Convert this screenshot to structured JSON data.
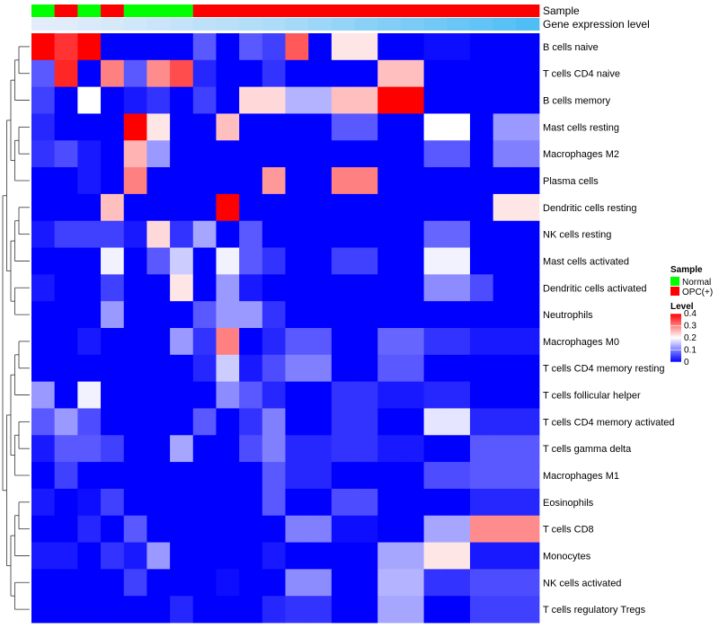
{
  "chart_data": {
    "type": "heatmap",
    "annotation_tracks": [
      {
        "name": "Sample",
        "values": [
          "Normal",
          "OPC(+)",
          "Normal",
          "OPC(+)",
          "Normal",
          "Normal",
          "Normal",
          "OPC(+)",
          "OPC(+)",
          "OPC(+)",
          "OPC(+)",
          "OPC(+)",
          "OPC(+)",
          "OPC(+)",
          "OPC(+)",
          "OPC(+)",
          "OPC(+)",
          "OPC(+)",
          "OPC(+)",
          "OPC(+)",
          "OPC(+)",
          "OPC(+)"
        ]
      },
      {
        "name": "Gene expression level",
        "values": [
          0.01,
          0.02,
          0.04,
          0.06,
          0.08,
          0.1,
          0.12,
          0.14,
          0.16,
          0.18,
          0.2,
          0.23,
          0.26,
          0.29,
          0.32,
          0.35,
          0.38,
          0.41,
          0.44,
          0.47,
          0.5,
          0.53
        ]
      }
    ],
    "rows": [
      {
        "label": "B cells naive",
        "values": [
          0.4,
          0.36,
          0.4,
          0,
          0,
          0,
          0,
          0.07,
          0,
          0.07,
          0.05,
          0.33,
          0,
          0.22,
          0.22,
          0,
          0,
          0.01,
          0.01,
          0,
          0,
          0
        ]
      },
      {
        "label": "T cells CD4 naive",
        "values": [
          0.07,
          0.37,
          0,
          0.3,
          0.07,
          0.29,
          0.34,
          0.03,
          0,
          0,
          0.04,
          0,
          0,
          0,
          0,
          0.25,
          0.25,
          0,
          0,
          0,
          0,
          0
        ]
      },
      {
        "label": "B cells memory",
        "values": [
          0.05,
          0,
          0.2,
          0,
          0.02,
          0.04,
          0,
          0.05,
          0,
          0.23,
          0.23,
          0.14,
          0.14,
          0.25,
          0.25,
          0.4,
          0.4,
          0,
          0,
          0,
          0,
          0
        ]
      },
      {
        "label": "Mast cells resting",
        "values": [
          0.03,
          0,
          0,
          0,
          0.4,
          0.22,
          0,
          0,
          0.25,
          0,
          0,
          0,
          0,
          0.07,
          0.07,
          0,
          0,
          0.2,
          0.2,
          0,
          0.12,
          0.12
        ]
      },
      {
        "label": "Macrophages M2",
        "values": [
          0.04,
          0.06,
          0.02,
          0,
          0.26,
          0.12,
          0,
          0,
          0,
          0,
          0,
          0,
          0,
          0,
          0,
          0,
          0,
          0.07,
          0.07,
          0,
          0.1,
          0.1
        ]
      },
      {
        "label": "Plasma cells",
        "values": [
          0,
          0,
          0.02,
          0,
          0.3,
          0,
          0,
          0,
          0,
          0,
          0.28,
          0,
          0,
          0.3,
          0.3,
          0,
          0,
          0,
          0,
          0,
          0,
          0
        ]
      },
      {
        "label": "Dendritic cells resting",
        "values": [
          0,
          0,
          0,
          0.25,
          0,
          0,
          0,
          0,
          0.4,
          0,
          0,
          0,
          0,
          0,
          0,
          0,
          0,
          0,
          0,
          0,
          0.22,
          0.22
        ]
      },
      {
        "label": "NK cells resting",
        "values": [
          0.02,
          0.05,
          0.05,
          0.05,
          0.02,
          0.23,
          0.04,
          0.13,
          0,
          0.07,
          0,
          0,
          0,
          0,
          0,
          0,
          0,
          0.08,
          0.08,
          0,
          0,
          0
        ]
      },
      {
        "label": "Mast cells activated",
        "values": [
          0,
          0,
          0,
          0.19,
          0,
          0.07,
          0.16,
          0,
          0.19,
          0.07,
          0.04,
          0,
          0,
          0.05,
          0.05,
          0,
          0,
          0.19,
          0.19,
          0,
          0,
          0
        ]
      },
      {
        "label": "Dendritic cells activated",
        "values": [
          0.02,
          0,
          0,
          0.05,
          0,
          0,
          0.22,
          0,
          0.12,
          0.02,
          0,
          0,
          0,
          0,
          0,
          0,
          0,
          0.11,
          0.11,
          0.06,
          0,
          0
        ]
      },
      {
        "label": "Neutrophils",
        "values": [
          0,
          0,
          0,
          0.12,
          0,
          0,
          0,
          0.07,
          0.12,
          0.12,
          0.04,
          0,
          0,
          0,
          0,
          0,
          0,
          0,
          0,
          0,
          0,
          0
        ]
      },
      {
        "label": "Macrophages M0",
        "values": [
          0,
          0,
          0.02,
          0,
          0,
          0,
          0.12,
          0.04,
          0.3,
          0,
          0.03,
          0.07,
          0.07,
          0,
          0,
          0.08,
          0.08,
          0.04,
          0.04,
          0.02,
          0.02,
          0.02
        ]
      },
      {
        "label": "T cells CD4 memory resting",
        "values": [
          0,
          0,
          0,
          0,
          0,
          0,
          0,
          0.03,
          0.16,
          0.02,
          0.06,
          0.1,
          0.1,
          0,
          0,
          0.07,
          0.07,
          0,
          0,
          0,
          0,
          0
        ]
      },
      {
        "label": "T cells follicular helper",
        "values": [
          0.12,
          0,
          0.19,
          0,
          0,
          0,
          0,
          0,
          0.11,
          0.07,
          0.03,
          0,
          0,
          0.04,
          0.04,
          0.02,
          0.02,
          0.03,
          0.03,
          0,
          0,
          0
        ]
      },
      {
        "label": "T cells CD4 memory activated",
        "values": [
          0.07,
          0.12,
          0.06,
          0,
          0,
          0,
          0,
          0.07,
          0,
          0.04,
          0.1,
          0,
          0,
          0.04,
          0.04,
          0,
          0,
          0.18,
          0.18,
          0.03,
          0.03,
          0.03
        ]
      },
      {
        "label": "T cells gamma delta",
        "values": [
          0.02,
          0.07,
          0.07,
          0.05,
          0,
          0,
          0.13,
          0,
          0,
          0.06,
          0.1,
          0.03,
          0.03,
          0.04,
          0.04,
          0.02,
          0.02,
          0,
          0,
          0.07,
          0.07,
          0.07
        ]
      },
      {
        "label": "Macrophages M1",
        "values": [
          0,
          0.05,
          0,
          0,
          0,
          0,
          0,
          0,
          0,
          0,
          0.07,
          0.03,
          0.03,
          0,
          0,
          0,
          0,
          0.06,
          0.06,
          0.07,
          0.07,
          0.07
        ]
      },
      {
        "label": "Eosinophils",
        "values": [
          0.02,
          0,
          0.01,
          0.05,
          0,
          0,
          0,
          0,
          0,
          0,
          0.07,
          0,
          0,
          0.06,
          0.06,
          0,
          0,
          0,
          0,
          0.03,
          0.03,
          0.03
        ]
      },
      {
        "label": "T cells CD8",
        "values": [
          0,
          0,
          0.03,
          0,
          0.07,
          0,
          0,
          0,
          0,
          0,
          0,
          0.1,
          0.1,
          0.01,
          0.01,
          0,
          0,
          0.13,
          0.13,
          0.29,
          0.29,
          0.29
        ]
      },
      {
        "label": "Monocytes",
        "values": [
          0.02,
          0.02,
          0,
          0.04,
          0.02,
          0.12,
          0,
          0,
          0,
          0,
          0.02,
          0,
          0,
          0,
          0,
          0.13,
          0.13,
          0.22,
          0.22,
          0.02,
          0.02,
          0.02
        ]
      },
      {
        "label": "NK cells activated",
        "values": [
          0,
          0,
          0,
          0,
          0.05,
          0,
          0,
          0,
          0.01,
          0,
          0,
          0.11,
          0.11,
          0,
          0,
          0.14,
          0.14,
          0.04,
          0.04,
          0.06,
          0.06,
          0.06
        ]
      },
      {
        "label": "T cells regulatory  Tregs",
        "values": [
          0,
          0,
          0,
          0,
          0,
          0,
          0.03,
          0,
          0,
          0,
          0.03,
          0.04,
          0.04,
          0,
          0,
          0.13,
          0.13,
          0,
          0,
          0.05,
          0.05,
          0.05
        ]
      }
    ],
    "legend": [
      {
        "title": "Sample",
        "entries": [
          {
            "label": "Normal",
            "color": "#00ff00"
          },
          {
            "label": "OPC(+)",
            "color": "#ff0000"
          }
        ]
      },
      {
        "title": "Level",
        "ticks": [
          0.4,
          0.3,
          0.2,
          0.1,
          0
        ],
        "tick_labels": [
          "0.4",
          "0.3",
          "0.2",
          "0.1",
          "0"
        ]
      }
    ],
    "legend_position": "right",
    "color_scale": {
      "low": "#0000ff",
      "mid": "#ffffff",
      "high": "#ff0000",
      "min": 0,
      "mid_value": 0.2,
      "max": 0.4
    },
    "row_dendrogram": true,
    "grid": false
  }
}
